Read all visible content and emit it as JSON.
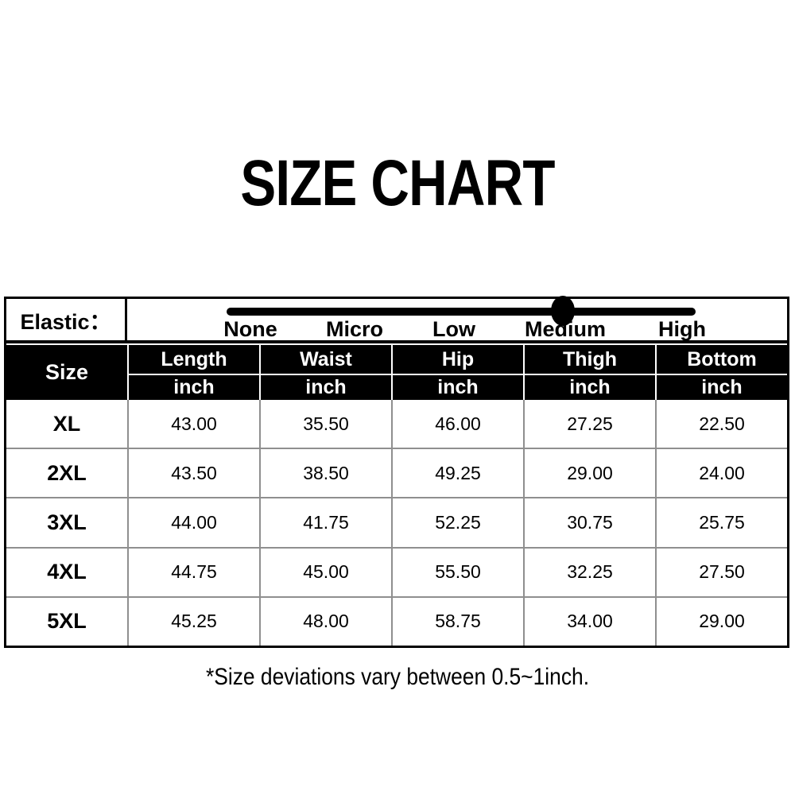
{
  "title": "SIZE CHART",
  "elastic": {
    "label": "Elastic：",
    "levels": [
      "None",
      "Micro",
      "Low",
      "Medium",
      "High"
    ],
    "selected": "Medium"
  },
  "chart_data": {
    "type": "table",
    "title": "SIZE CHART",
    "unit": "inch",
    "columns": [
      "Size",
      "Length",
      "Waist",
      "Hip",
      "Thigh",
      "Bottom"
    ],
    "rows": [
      [
        "XL",
        "43.00",
        "35.50",
        "46.00",
        "27.25",
        "22.50"
      ],
      [
        "2XL",
        "43.50",
        "38.50",
        "49.25",
        "29.00",
        "24.00"
      ],
      [
        "3XL",
        "44.00",
        "41.75",
        "52.25",
        "30.75",
        "25.75"
      ],
      [
        "4XL",
        "44.75",
        "45.00",
        "55.50",
        "32.25",
        "27.50"
      ],
      [
        "5XL",
        "45.25",
        "48.00",
        "58.75",
        "34.00",
        "29.00"
      ]
    ],
    "elastic_scale": {
      "levels": [
        "None",
        "Micro",
        "Low",
        "Medium",
        "High"
      ],
      "selected": "Medium"
    },
    "footnote": "*Size deviations vary between 0.5~1inch."
  },
  "footnote": "*Size deviations vary between 0.5~1inch.",
  "colors": {
    "header_bg": "#000000",
    "header_text": "#ffffff",
    "grid_line": "#8f8f8f",
    "border": "#000000",
    "background": "#ffffff"
  }
}
